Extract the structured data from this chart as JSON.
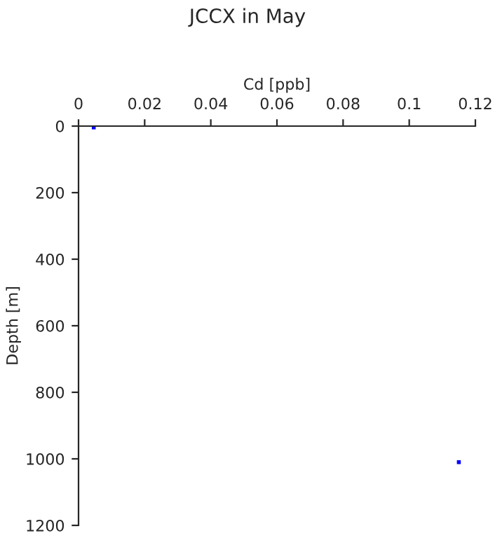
{
  "chart_data": {
    "type": "scatter",
    "title": "JCCX in May",
    "xlabel": "Cd [ppb]",
    "ylabel": "Depth [m]",
    "x": [
      0.0046,
      0.115
    ],
    "series": [
      {
        "color": "#0000ff",
        "values": [
          4,
          1010
        ]
      }
    ],
    "xlim": [
      0,
      0.12
    ],
    "xticks": [
      0,
      0.02,
      0.04,
      0.06,
      0.08,
      0.1,
      0.12
    ],
    "ylim": [
      1200,
      0
    ],
    "yticks": [
      0,
      200,
      400,
      600,
      800,
      1000,
      1200
    ],
    "grid": false,
    "marker": "square"
  }
}
